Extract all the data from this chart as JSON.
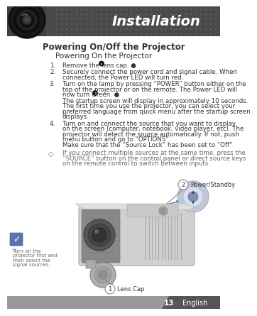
{
  "title_banner": "Installation",
  "banner_bg_color": "#3a3a3a",
  "banner_text_color": "#ffffff",
  "page_bg_color": "#ffffff",
  "main_title": "Powering On/Off the Projector",
  "sub_title": "Powering On the Projector",
  "step1": "Remove the lens cap. ●",
  "step2_l1": "Securely connect the power cord and signal cable. When",
  "step2_l2": "connected, the Power LED will turn red.",
  "step3_l1": "Turn on the lamp by pressing “POWER” button either on the",
  "step3_l2": "top of the projector or on the remote. The Power LED will",
  "step3_l3": "now turn Green. ●",
  "step3_l4": "The startup screen will display in approximately 10 seconds.",
  "step3_l5": "The first time you use the projector, you can select your",
  "step3_l6": "preferred language from quick menu after the startup screen",
  "step3_l7": "displays.",
  "step4_l1": "Turn on and connect the source that you want to display",
  "step4_l2": "on the screen (computer, notebook, video player, etc). The",
  "step4_l3": "projector will detect the source automatically. If not, push",
  "step4_l4": "menu button and go to “OPTIONS”.",
  "step4_l5": "Make sure that the “Source Lock” has been set to “Off”.",
  "note_l1": "If you connect multiple sources at the same time, press the",
  "note_l2": "“SOURCE” button on the control panel or direct source keys",
  "note_l3": "on the remote control to switch between inputs.",
  "side_note_l1": "Turn on the",
  "side_note_l2": "projector first and",
  "side_note_l3": "then select the",
  "side_note_l4": "signal sources.",
  "label1": "Lens Cap",
  "label2": "Power/Standby",
  "page_num": "13",
  "page_lang": "English",
  "text_color": "#333333",
  "light_text": "#666666",
  "banner_dot_color": "#555555",
  "footer_left_color": "#888888",
  "footer_right_color": "#555555"
}
